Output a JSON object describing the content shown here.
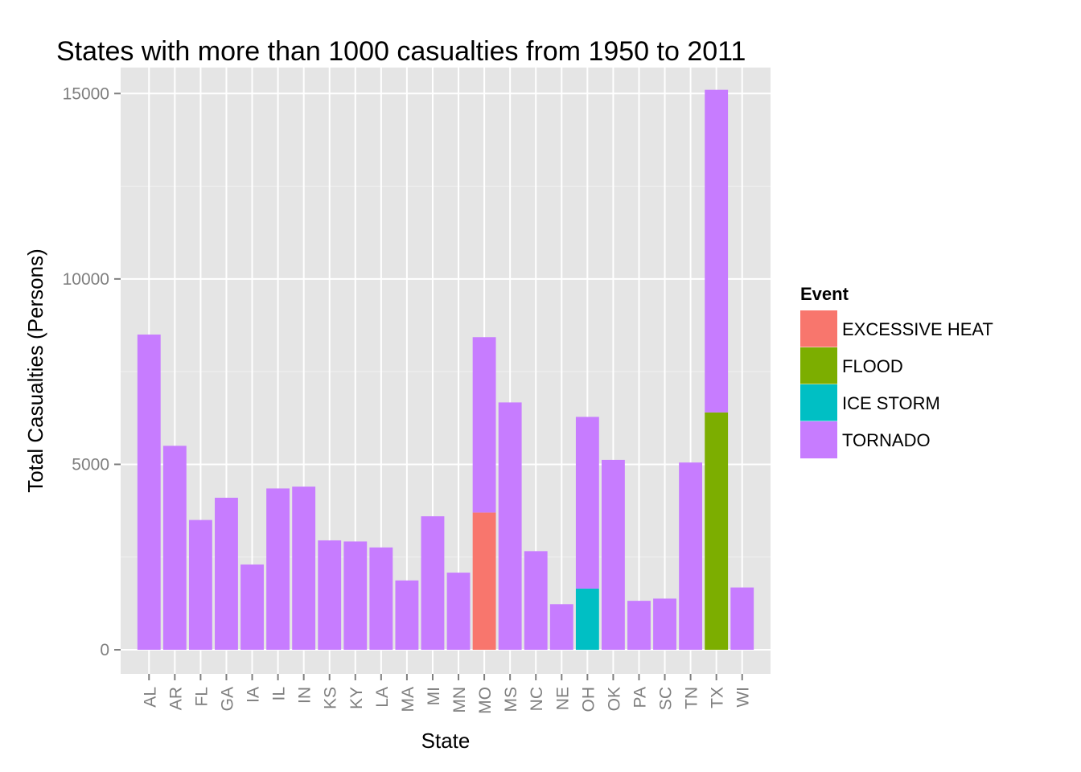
{
  "chart_data": {
    "type": "bar",
    "stacked": true,
    "title": "States with more than 1000 casualties from 1950 to 2011",
    "xlabel": "State",
    "ylabel": "Total Casualties (Persons)",
    "ylim": [
      -650,
      15700
    ],
    "yticks": [
      0,
      5000,
      10000,
      15000
    ],
    "grid": true,
    "legend_position": "right",
    "categories": [
      "AL",
      "AR",
      "FL",
      "GA",
      "IA",
      "IL",
      "IN",
      "KS",
      "KY",
      "LA",
      "MA",
      "MI",
      "MN",
      "MO",
      "MS",
      "NC",
      "NE",
      "OH",
      "OK",
      "PA",
      "SC",
      "TN",
      "TX",
      "WI"
    ],
    "legend": {
      "title": "Event",
      "entries": [
        "EXCESSIVE HEAT",
        "FLOOD",
        "ICE STORM",
        "TORNADO"
      ]
    },
    "colors": {
      "EXCESSIVE HEAT": "#F8766D",
      "FLOOD": "#7CAE00",
      "ICE STORM": "#00BFC4",
      "TORNADO": "#C77CFF"
    },
    "series": [
      {
        "name": "EXCESSIVE HEAT",
        "values": [
          0,
          0,
          0,
          0,
          0,
          0,
          0,
          0,
          0,
          0,
          0,
          0,
          0,
          3700,
          0,
          0,
          0,
          0,
          0,
          0,
          0,
          0,
          0,
          0
        ]
      },
      {
        "name": "FLOOD",
        "values": [
          0,
          0,
          0,
          0,
          0,
          0,
          0,
          0,
          0,
          0,
          0,
          0,
          0,
          0,
          0,
          0,
          0,
          0,
          0,
          0,
          0,
          0,
          6400,
          0
        ]
      },
      {
        "name": "ICE STORM",
        "values": [
          0,
          0,
          0,
          0,
          0,
          0,
          0,
          0,
          0,
          0,
          0,
          0,
          0,
          0,
          0,
          0,
          0,
          1650,
          0,
          0,
          0,
          0,
          0,
          0
        ]
      },
      {
        "name": "TORNADO",
        "values": [
          8500,
          5500,
          3500,
          4100,
          2300,
          4350,
          4400,
          2950,
          2920,
          2760,
          1870,
          3600,
          2080,
          4730,
          6670,
          2660,
          1230,
          4630,
          5120,
          1320,
          1380,
          5050,
          8700,
          1680
        ]
      }
    ]
  }
}
